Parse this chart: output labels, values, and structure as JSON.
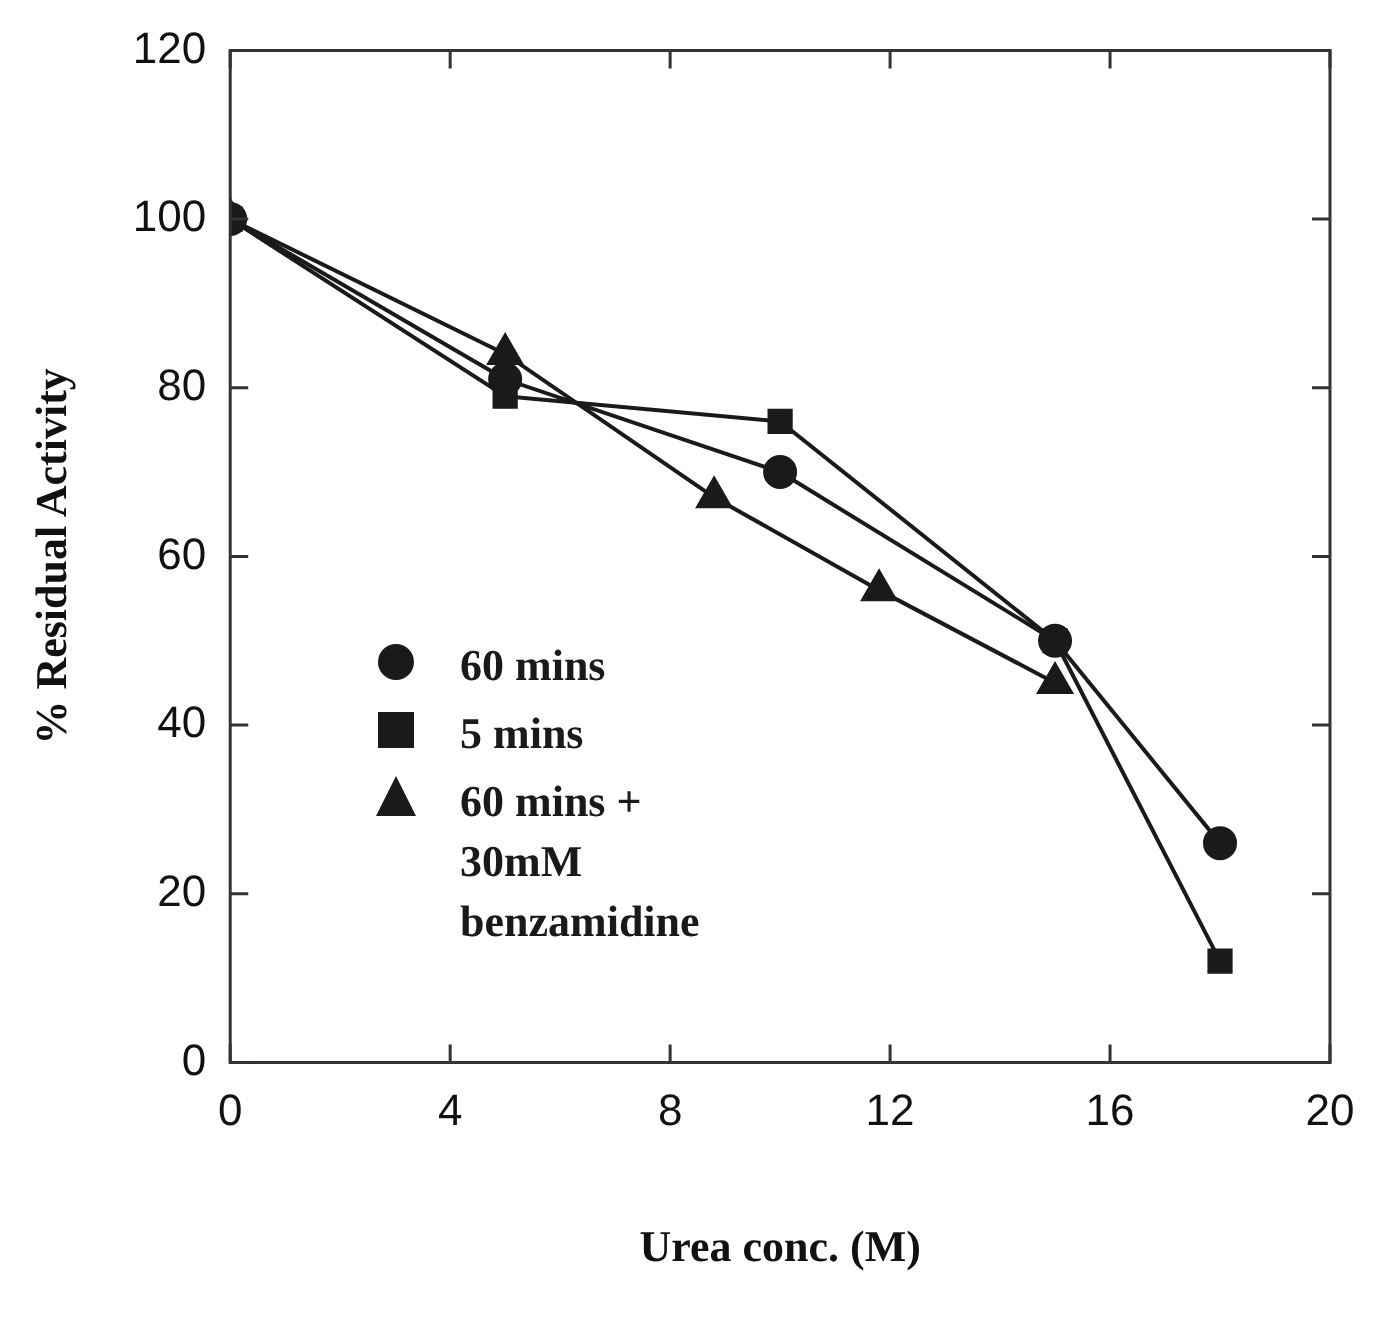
{
  "chart_data": {
    "type": "line",
    "xlabel": "Urea conc. (M)",
    "ylabel": "% Residual Activity",
    "xlim": [
      0,
      20
    ],
    "xticks": [
      0,
      4,
      8,
      12,
      16,
      20
    ],
    "ylim": [
      0,
      120
    ],
    "yticks": [
      0,
      20,
      40,
      60,
      80,
      100,
      120
    ],
    "grid": false,
    "legend": "left",
    "line_style": "solid",
    "series": [
      {
        "name": "60 mins",
        "color": "#1a1a1a",
        "marker": "circle",
        "x": [
          0,
          5,
          10,
          15,
          18
        ],
        "values": [
          100,
          81,
          70,
          50,
          26
        ]
      },
      {
        "name": "5 mins",
        "color": "#1a1a1a",
        "marker": "square",
        "x": [
          0,
          5,
          10,
          15,
          18
        ],
        "values": [
          100,
          79,
          76,
          50,
          12
        ]
      },
      {
        "name": "60 mins + 30mM benzamidine",
        "color": "#1a1a1a",
        "marker": "triangle",
        "x": [
          0,
          5,
          8.8,
          11.8,
          15
        ],
        "values": [
          100,
          84,
          67,
          56,
          45
        ]
      }
    ]
  }
}
